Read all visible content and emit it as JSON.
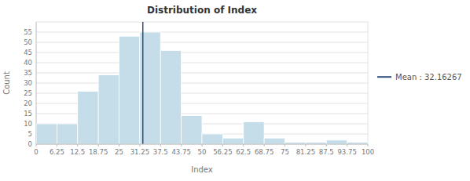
{
  "chart_data": {
    "type": "histogram",
    "title": "Distribution of Index",
    "xlabel": "Index",
    "ylabel": "Count",
    "bins": [
      0,
      6.25,
      12.5,
      18.75,
      25,
      31.25,
      37.5,
      43.75,
      50,
      56.25,
      62.5,
      68.75,
      75,
      81.25,
      87.5,
      93.75,
      100
    ],
    "values": [
      10,
      10,
      26,
      34,
      53,
      55,
      46,
      14,
      5,
      3,
      11,
      3,
      1,
      1,
      2,
      1
    ],
    "color": "#c5dde8",
    "mean": {
      "name": "Mean : 32.16267",
      "value": 32.16267,
      "color": "#2e4d7b"
    },
    "xlim": [
      0,
      100
    ],
    "ylim": [
      0,
      60
    ],
    "xticks": [
      0,
      6.25,
      12.5,
      18.75,
      25,
      31.25,
      37.5,
      43.75,
      50,
      56.25,
      62.5,
      68.75,
      75,
      81.25,
      87.5,
      93.75,
      100
    ],
    "yticks": [
      0,
      5,
      10,
      15,
      20,
      25,
      30,
      35,
      40,
      45,
      50,
      55
    ],
    "grid": true,
    "legend": "right"
  }
}
